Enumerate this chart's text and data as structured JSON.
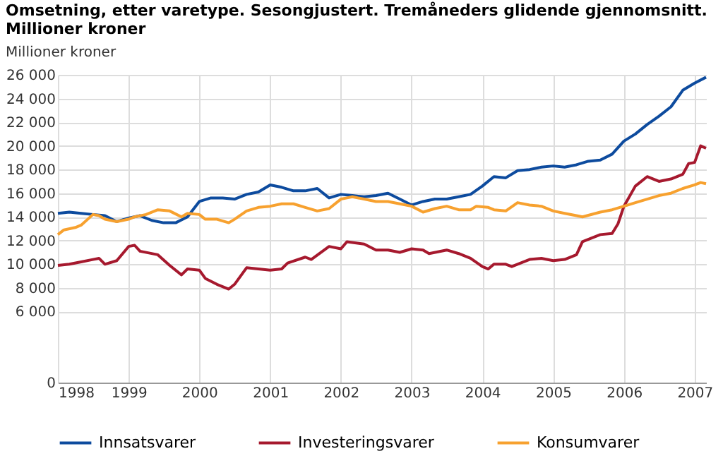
{
  "chart_data": {
    "type": "line",
    "title": "Omsetning, etter varetype. Sesongjustert. Tremåneders glidende gjennomsnitt. Millioner kroner",
    "ylabel": "Millioner kroner",
    "xlim": [
      "1998-01",
      "2007-03"
    ],
    "xticks": [
      "1998",
      "1999",
      "2000",
      "2001",
      "2002",
      "2003",
      "2004",
      "2005",
      "2006",
      "2007"
    ],
    "ylim": [
      0,
      26000
    ],
    "yticks": [
      0,
      {
        "value": 6000,
        "label": "6 000"
      },
      {
        "value": 8000,
        "label": "8 000"
      },
      {
        "value": 10000,
        "label": "10 000"
      },
      {
        "value": 12000,
        "label": "12 000"
      },
      {
        "value": 14000,
        "label": "14 000"
      },
      {
        "value": 16000,
        "label": "16 000"
      },
      {
        "value": 18000,
        "label": "18 000"
      },
      {
        "value": 20000,
        "label": "20 000"
      },
      {
        "value": 22000,
        "label": "22 000"
      },
      {
        "value": 24000,
        "label": "24 000"
      },
      {
        "value": 26000,
        "label": "26 000"
      }
    ],
    "grid": true,
    "legend": "bottom",
    "line_style": "solid",
    "series": [
      {
        "name": "Innsatsvarer",
        "color": "#0d4b9e",
        "x": [
          "1998-01",
          "1998-03",
          "1998-05",
          "1998-07",
          "1998-09",
          "1998-11",
          "1999-01",
          "1999-03",
          "1999-05",
          "1999-07",
          "1999-09",
          "1999-11",
          "2000-01",
          "2000-03",
          "2000-05",
          "2000-07",
          "2000-09",
          "2000-11",
          "2001-01",
          "2001-03",
          "2001-05",
          "2001-07",
          "2001-09",
          "2001-11",
          "2002-01",
          "2002-03",
          "2002-05",
          "2002-07",
          "2002-09",
          "2002-11",
          "2003-01",
          "2003-03",
          "2003-05",
          "2003-07",
          "2003-09",
          "2003-11",
          "2004-01",
          "2004-03",
          "2004-05",
          "2004-07",
          "2004-09",
          "2004-11",
          "2005-01",
          "2005-03",
          "2005-05",
          "2005-07",
          "2005-09",
          "2005-11",
          "2006-01",
          "2006-03",
          "2006-05",
          "2006-07",
          "2006-09",
          "2006-11",
          "2007-01",
          "2007-03"
        ],
        "values": [
          14300,
          14400,
          14300,
          14200,
          14100,
          13600,
          13900,
          14100,
          13700,
          13500,
          13500,
          14000,
          15300,
          15600,
          15600,
          15500,
          15900,
          16100,
          16700,
          16500,
          16200,
          16200,
          16400,
          15600,
          15900,
          15800,
          15700,
          15800,
          16000,
          15500,
          15000,
          15300,
          15500,
          15500,
          15700,
          15900,
          16600,
          17400,
          17300,
          17900,
          18000,
          18200,
          18300,
          18200,
          18400,
          18700,
          18800,
          19300,
          20400,
          21000,
          21800,
          22500,
          23300,
          24700,
          25300,
          25800
        ]
      },
      {
        "name": "Investeringsvarer",
        "color": "#a6192e",
        "x": [
          "1998-01",
          "1998-03",
          "1998-05",
          "1998-07",
          "1998-08",
          "1998-09",
          "1998-11",
          "1999-01",
          "1999-02",
          "1999-03",
          "1999-06",
          "1999-08",
          "1999-10",
          "1999-11",
          "2000-01",
          "2000-02",
          "2000-04",
          "2000-06",
          "2000-07",
          "2000-09",
          "2000-11",
          "2001-01",
          "2001-03",
          "2001-04",
          "2001-07",
          "2001-08",
          "2001-11",
          "2002-01",
          "2002-02",
          "2002-05",
          "2002-07",
          "2002-09",
          "2002-11",
          "2003-01",
          "2003-03",
          "2003-04",
          "2003-07",
          "2003-09",
          "2003-11",
          "2004-01",
          "2004-02",
          "2004-03",
          "2004-05",
          "2004-06",
          "2004-09",
          "2004-11",
          "2005-01",
          "2005-03",
          "2005-05",
          "2005-06",
          "2005-09",
          "2005-11",
          "2005-12",
          "2006-01",
          "2006-03",
          "2006-05",
          "2006-07",
          "2006-09",
          "2006-11",
          "2006-12",
          "2007-01",
          "2007-02",
          "2007-03"
        ],
        "values": [
          9900,
          10000,
          10200,
          10400,
          10500,
          10000,
          10300,
          11500,
          11600,
          11100,
          10800,
          9900,
          9100,
          9600,
          9500,
          8800,
          8300,
          7900,
          8300,
          9700,
          9600,
          9500,
          9600,
          10100,
          10600,
          10400,
          11500,
          11300,
          11900,
          11700,
          11200,
          11200,
          11000,
          11300,
          11200,
          10900,
          11200,
          10900,
          10500,
          9800,
          9600,
          10000,
          10000,
          9800,
          10400,
          10500,
          10300,
          10400,
          10800,
          11900,
          12500,
          12600,
          13400,
          14900,
          16600,
          17400,
          17000,
          17200,
          17600,
          18500,
          18600,
          20000,
          19800
        ]
      },
      {
        "name": "Konsumvarer",
        "color": "#f7a12f",
        "x": [
          "1998-01",
          "1998-02",
          "1998-04",
          "1998-05",
          "1998-07",
          "1998-08",
          "1998-09",
          "1998-11",
          "1999-01",
          "1999-02",
          "1999-04",
          "1999-06",
          "1999-08",
          "1999-10",
          "1999-11",
          "2000-01",
          "2000-02",
          "2000-04",
          "2000-06",
          "2000-07",
          "2000-09",
          "2000-11",
          "2001-01",
          "2001-03",
          "2001-05",
          "2001-07",
          "2001-09",
          "2001-11",
          "2002-01",
          "2002-02",
          "2002-03",
          "2002-05",
          "2002-07",
          "2002-09",
          "2002-11",
          "2003-01",
          "2003-03",
          "2003-05",
          "2003-07",
          "2003-09",
          "2003-11",
          "2003-12",
          "2004-02",
          "2004-03",
          "2004-05",
          "2004-07",
          "2004-09",
          "2004-11",
          "2005-01",
          "2005-03",
          "2005-05",
          "2005-06",
          "2005-09",
          "2005-11",
          "2006-01",
          "2006-03",
          "2006-05",
          "2006-07",
          "2006-09",
          "2006-11",
          "2007-01",
          "2007-02",
          "2007-03"
        ],
        "values": [
          12500,
          12900,
          13100,
          13300,
          14200,
          14100,
          13800,
          13600,
          13800,
          14000,
          14200,
          14600,
          14500,
          14000,
          14300,
          14200,
          13800,
          13800,
          13500,
          13800,
          14500,
          14800,
          14900,
          15100,
          15100,
          14800,
          14500,
          14700,
          15500,
          15600,
          15700,
          15500,
          15300,
          15300,
          15100,
          14900,
          14400,
          14700,
          14900,
          14600,
          14600,
          14900,
          14800,
          14600,
          14500,
          15200,
          15000,
          14900,
          14500,
          14300,
          14100,
          14000,
          14400,
          14600,
          14900,
          15200,
          15500,
          15800,
          16000,
          16400,
          16700,
          16900,
          16800
        ]
      }
    ]
  }
}
